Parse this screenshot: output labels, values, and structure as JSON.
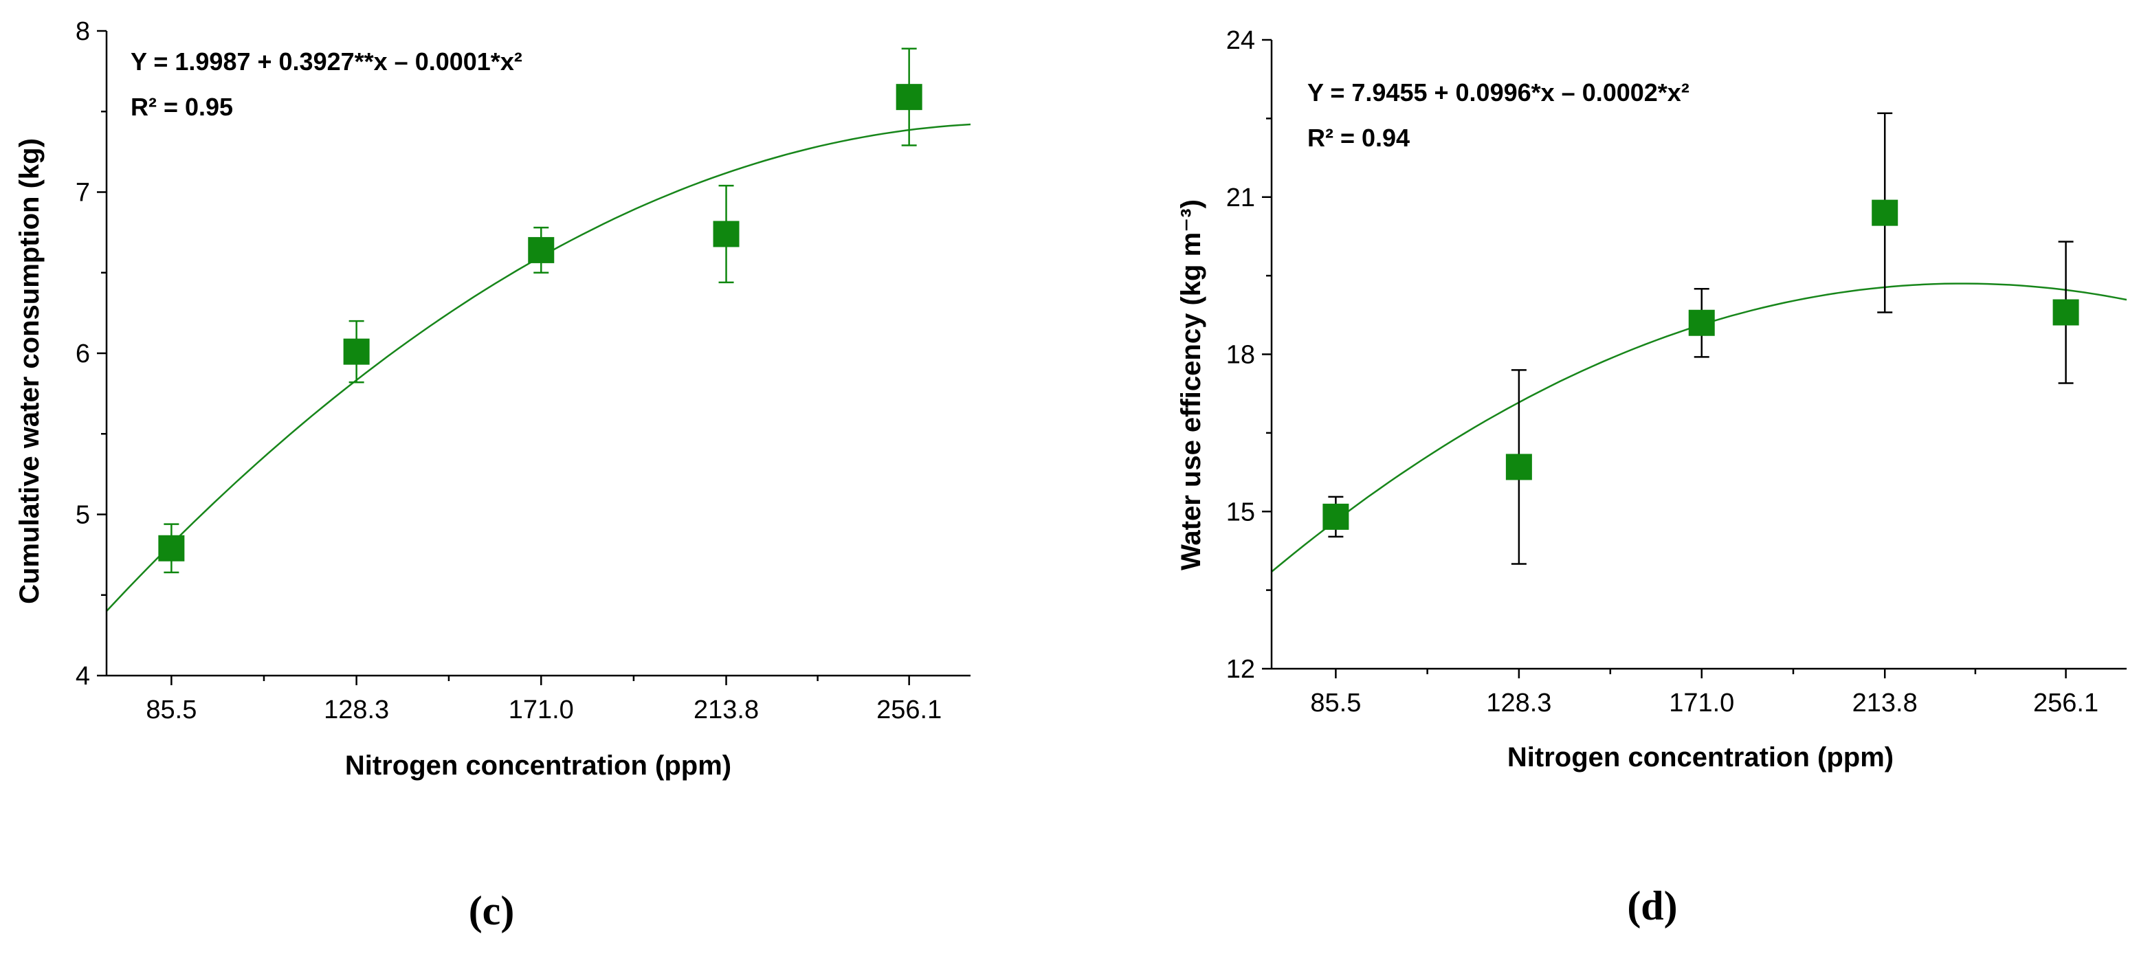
{
  "colors": {
    "marker": "#0f870f",
    "curve": "#17861a",
    "errorbar_c": "#0f870f",
    "errorbar_d": "#000000"
  },
  "chart_data": [
    {
      "panel": "(c)",
      "type": "scatter",
      "xlabel": "Nitrogen concentration (ppm)",
      "ylabel": "Cumulative water consumption (kg)",
      "categories": [
        "85.5",
        "128.3",
        "171.0",
        "213.8",
        "256.1"
      ],
      "x": [
        85.5,
        128.3,
        171.0,
        213.8,
        256.1
      ],
      "values": [
        4.79,
        6.01,
        6.64,
        6.74,
        7.59
      ],
      "errors": [
        0.15,
        0.19,
        0.14,
        0.3,
        0.3
      ],
      "xlim": [
        70.5,
        270.3
      ],
      "ylim": [
        4,
        8
      ],
      "yticks": [
        "4",
        "5",
        "6",
        "7",
        "8"
      ],
      "fit": {
        "equation": "Y = 1.9987 + 0.3927**x – 0.0001*x²",
        "r2": "R² = 0.95",
        "x_end_value": 7.42,
        "x_start_value": 4.4
      },
      "grid": false
    },
    {
      "panel": "(d)",
      "type": "scatter",
      "xlabel": "Nitrogen concentration (ppm)",
      "ylabel": "Water use efficency (kg m⁻³)",
      "categories": [
        "85.5",
        "128.3",
        "171.0",
        "213.8",
        "256.1"
      ],
      "x": [
        85.5,
        128.3,
        171.0,
        213.8,
        256.1
      ],
      "values": [
        14.9,
        15.85,
        18.6,
        20.7,
        18.8
      ],
      "errors": [
        0.38,
        1.85,
        0.65,
        1.9,
        1.35
      ],
      "xlim": [
        70.5,
        270.3
      ],
      "ylim": [
        12,
        24
      ],
      "yticks": [
        "12",
        "15",
        "18",
        "21",
        "24"
      ],
      "fit": {
        "equation": "Y = 7.9455 + 0.0996*x – 0.0002*x²",
        "r2": "R² = 0.94",
        "x_start_value": 13.85,
        "peak_x": 232,
        "peak_value": 19.35,
        "x_end_value": 18.98
      },
      "grid": false
    }
  ]
}
